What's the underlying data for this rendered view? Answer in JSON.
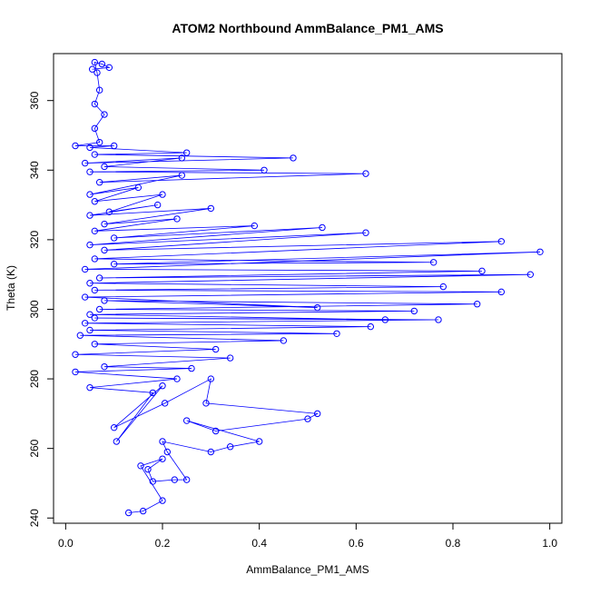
{
  "chart_data": {
    "type": "line",
    "title": "ATOM2 Northbound AmmBalance_PM1_AMS",
    "xlabel": "AmmBalance_PM1_AMS",
    "ylabel": "Theta (K)",
    "xlim": [
      -0.025,
      1.025
    ],
    "ylim": [
      238.5,
      373.5
    ],
    "x_ticks": [
      0.0,
      0.2,
      0.4,
      0.6,
      0.8,
      1.0
    ],
    "x_tick_labels": [
      "0.0",
      "0.2",
      "0.4",
      "0.6",
      "0.8",
      "1.0"
    ],
    "y_ticks": [
      240,
      260,
      280,
      300,
      320,
      340,
      360
    ],
    "y_tick_labels": [
      "240",
      "260",
      "280",
      "300",
      "320",
      "340",
      "360"
    ],
    "grid": false,
    "legend": "none",
    "series_color": "#0000ff",
    "marker": "open-circle",
    "series": [
      {
        "points": [
          [
            0.13,
            241.5
          ],
          [
            0.16,
            242.0
          ],
          [
            0.2,
            245.0
          ],
          [
            0.155,
            255.0
          ],
          [
            0.2,
            257.0
          ],
          [
            0.17,
            254.0
          ],
          [
            0.18,
            250.5
          ],
          [
            0.225,
            251.0
          ],
          [
            0.25,
            251.0
          ],
          [
            0.21,
            259.0
          ],
          [
            0.2,
            262.0
          ],
          [
            0.3,
            259.0
          ],
          [
            0.34,
            260.5
          ],
          [
            0.4,
            262.0
          ],
          [
            0.25,
            268.0
          ],
          [
            0.31,
            265.0
          ],
          [
            0.5,
            268.5
          ],
          [
            0.52,
            270.0
          ],
          [
            0.29,
            273.0
          ],
          [
            0.3,
            280.0
          ],
          [
            0.205,
            273.0
          ],
          [
            0.1,
            266.0
          ],
          [
            0.2,
            278.0
          ],
          [
            0.105,
            262.0
          ],
          [
            0.18,
            276.0
          ],
          [
            0.05,
            277.5
          ],
          [
            0.23,
            280.0
          ],
          [
            0.02,
            282.0
          ],
          [
            0.26,
            283.0
          ],
          [
            0.08,
            283.5
          ],
          [
            0.34,
            286.0
          ],
          [
            0.02,
            287.0
          ],
          [
            0.31,
            288.5
          ],
          [
            0.06,
            290.0
          ],
          [
            0.45,
            291.0
          ],
          [
            0.03,
            292.5
          ],
          [
            0.56,
            293.0
          ],
          [
            0.05,
            294.0
          ],
          [
            0.63,
            295.0
          ],
          [
            0.04,
            296.0
          ],
          [
            0.77,
            297.0
          ],
          [
            0.06,
            297.5
          ],
          [
            0.66,
            297.0
          ],
          [
            0.05,
            298.5
          ],
          [
            0.72,
            299.5
          ],
          [
            0.07,
            300.0
          ],
          [
            0.85,
            301.5
          ],
          [
            0.08,
            302.5
          ],
          [
            0.52,
            300.5
          ],
          [
            0.04,
            303.5
          ],
          [
            0.9,
            305.0
          ],
          [
            0.06,
            305.5
          ],
          [
            0.78,
            306.5
          ],
          [
            0.05,
            307.5
          ],
          [
            0.96,
            310.0
          ],
          [
            0.07,
            309.0
          ],
          [
            0.86,
            311.0
          ],
          [
            0.04,
            311.5
          ],
          [
            0.98,
            316.5
          ],
          [
            0.1,
            313.0
          ],
          [
            0.76,
            313.5
          ],
          [
            0.06,
            314.5
          ],
          [
            0.9,
            319.5
          ],
          [
            0.08,
            317.0
          ],
          [
            0.62,
            322.0
          ],
          [
            0.05,
            318.5
          ],
          [
            0.53,
            323.5
          ],
          [
            0.1,
            320.5
          ],
          [
            0.39,
            324.0
          ],
          [
            0.06,
            322.5
          ],
          [
            0.23,
            326.0
          ],
          [
            0.08,
            324.5
          ],
          [
            0.3,
            329.0
          ],
          [
            0.05,
            327.0
          ],
          [
            0.19,
            330.0
          ],
          [
            0.09,
            328.0
          ],
          [
            0.2,
            333.0
          ],
          [
            0.06,
            331.0
          ],
          [
            0.15,
            335.0
          ],
          [
            0.05,
            333.0
          ],
          [
            0.24,
            338.5
          ],
          [
            0.07,
            336.5
          ],
          [
            0.62,
            339.0
          ],
          [
            0.05,
            339.5
          ],
          [
            0.41,
            340.0
          ],
          [
            0.08,
            341.0
          ],
          [
            0.24,
            343.5
          ],
          [
            0.04,
            342.0
          ],
          [
            0.47,
            343.5
          ],
          [
            0.06,
            344.5
          ],
          [
            0.25,
            345.0
          ],
          [
            0.05,
            346.5
          ],
          [
            0.1,
            347.0
          ],
          [
            0.02,
            347.0
          ],
          [
            0.07,
            348.0
          ],
          [
            0.06,
            352.0
          ],
          [
            0.08,
            356.0
          ],
          [
            0.06,
            359.0
          ],
          [
            0.07,
            363.0
          ],
          [
            0.065,
            368.0
          ],
          [
            0.06,
            371.0
          ],
          [
            0.075,
            370.5
          ],
          [
            0.09,
            369.5
          ],
          [
            0.055,
            369.0
          ]
        ]
      }
    ]
  }
}
